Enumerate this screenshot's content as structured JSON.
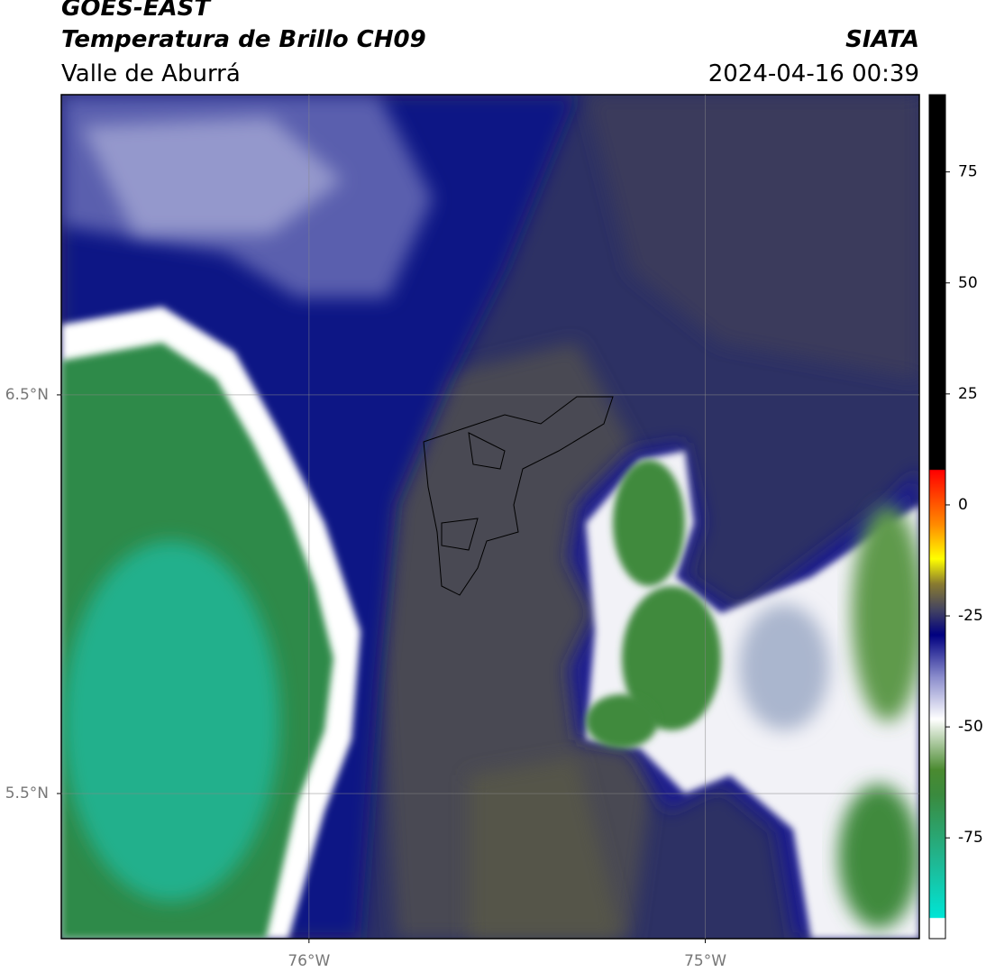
{
  "map": {
    "title": "GOES-EAST",
    "subtitle": "Temperatura de Brillo CH09",
    "region": "Valle de Aburrá",
    "source": "SIATA",
    "datetime": "2024-04-16 00:39",
    "xlim": [
      -76.625,
      -74.46
    ],
    "ylim": [
      5.136,
      7.253
    ],
    "xticks": [
      {
        "value": -76,
        "label": "76°W"
      },
      {
        "value": -75,
        "label": "75°W"
      }
    ],
    "yticks": [
      {
        "value": 6.5,
        "label": "6.5°N"
      },
      {
        "value": 5.5,
        "label": "5.5°N"
      }
    ],
    "grid": true,
    "colorbar": {
      "lim": [
        -97.7,
        92.4
      ],
      "ticks": [
        75,
        50,
        25,
        0,
        -25,
        -50,
        -75
      ]
    }
  }
}
